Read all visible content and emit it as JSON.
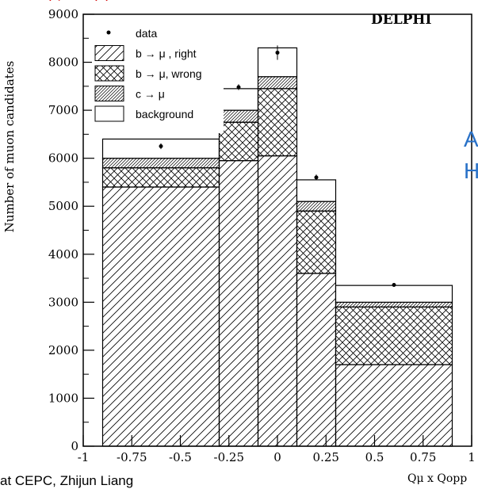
{
  "experiment_label": "DELPHI",
  "side_text": [
    "A",
    "H"
  ],
  "footer_text": "at CEPC, Zhijun Liang",
  "chart_data": {
    "type": "bar",
    "stacked": true,
    "ylabel": "Number of muon candidates",
    "xlabel": "Qμ x Qopp",
    "ylim": [
      0,
      9000
    ],
    "xlim": [
      -1,
      1
    ],
    "yticks": [
      0,
      1000,
      2000,
      3000,
      4000,
      5000,
      6000,
      7000,
      8000,
      9000
    ],
    "xticks": [
      "-1",
      "-0.75",
      "-0.5",
      "-0.25",
      "0",
      "0.25",
      "0.5",
      "0.75",
      "1"
    ],
    "bin_edges": [
      -0.9,
      -0.3,
      -0.1,
      0.1,
      0.3,
      0.9
    ],
    "series": [
      {
        "name": "b → μ , right",
        "values": [
          5400,
          5950,
          6050,
          3600,
          1700
        ]
      },
      {
        "name": "b → μ, wrong",
        "values": [
          400,
          800,
          1400,
          1300,
          1200
        ]
      },
      {
        "name": "c → μ",
        "values": [
          200,
          250,
          250,
          200,
          100
        ]
      },
      {
        "name": "background",
        "values": [
          400,
          450,
          600,
          450,
          350
        ]
      }
    ],
    "data_points": {
      "name": "data",
      "x": [
        -0.6,
        -0.2,
        0.0,
        0.2,
        0.6
      ],
      "y": [
        6250,
        7480,
        8200,
        5600,
        3360
      ],
      "err": [
        60,
        60,
        150,
        60,
        40
      ]
    },
    "legend": {
      "placement": "top-left",
      "entries": [
        "data",
        "b → μ , right",
        "b → μ, wrong",
        "c → μ",
        "background"
      ]
    }
  }
}
